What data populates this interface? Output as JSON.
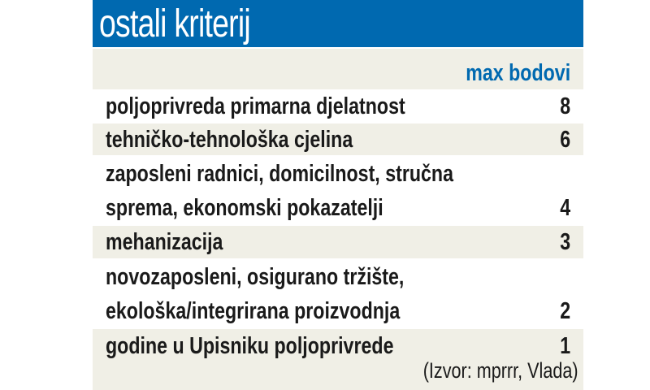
{
  "colors": {
    "header_blue": "#0069b0",
    "beige": "#f0efe6",
    "white": "#ffffff",
    "text": "#1a1a1a"
  },
  "title": "ostali kriterij",
  "column_header": "max bodovi",
  "rows": [
    {
      "label_lines": [
        "poljoprivreda primarna djelatnost"
      ],
      "value": "8"
    },
    {
      "label_lines": [
        "tehničko-tehnološka cjelina"
      ],
      "value": "6"
    },
    {
      "label_lines": [
        "zaposleni radnici, domicilnost, stručna",
        "sprema, ekonomski pokazatelji"
      ],
      "value": "4"
    },
    {
      "label_lines": [
        "mehanizacija"
      ],
      "value": "3"
    },
    {
      "label_lines": [
        "novozaposleni, osigurano tržište,",
        "ekološka/integrirana proizvodnja"
      ],
      "value": "2"
    },
    {
      "label_lines": [
        "godine u Upisniku poljoprivrede"
      ],
      "value": "1"
    }
  ],
  "source": "(Izvor: mprrr, Vlada)",
  "chart_data": {
    "type": "table",
    "title": "ostali kriterij",
    "columns": [
      "",
      "max bodovi"
    ],
    "categories": [
      "poljoprivreda primarna djelatnost",
      "tehničko-tehnološka cjelina",
      "zaposleni radnici, domicilnost, stručna sprema, ekonomski pokazatelji",
      "mehanizacija",
      "novozaposleni, osigurano tržište, ekološka/integrirana proizvodnja",
      "godine u Upisniku poljoprivrede"
    ],
    "values": [
      8,
      6,
      4,
      3,
      2,
      1
    ]
  }
}
